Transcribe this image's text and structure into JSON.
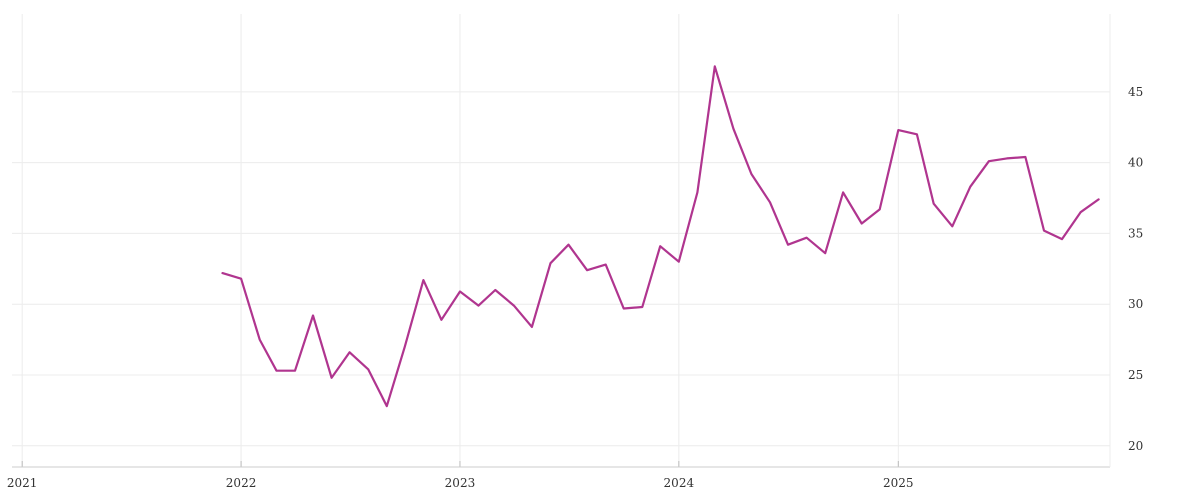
{
  "chart_data": {
    "type": "line",
    "title": "",
    "xlabel": "",
    "ylabel": "",
    "xlim": [
      "2020-12-15",
      "2025-12-20"
    ],
    "ylim": [
      18.5,
      50.5
    ],
    "x_ticks": [
      "2021",
      "2022",
      "2023",
      "2024",
      "2025"
    ],
    "y_ticks": [
      20,
      25,
      30,
      35,
      40,
      45
    ],
    "y_axis_side": "right",
    "grid": true,
    "colors": {
      "series": "#b0358f",
      "grid": "#ececec",
      "axis": "#cccccc",
      "text": "#333333"
    },
    "series": [
      {
        "x": [
          "2021-12",
          "2022-01",
          "2022-02",
          "2022-03",
          "2022-04",
          "2022-05",
          "2022-06",
          "2022-07",
          "2022-08",
          "2022-09",
          "2022-10",
          "2022-11",
          "2022-12",
          "2023-01",
          "2023-02",
          "2023-03",
          "2023-04",
          "2023-05",
          "2023-06",
          "2023-07",
          "2023-08",
          "2023-09",
          "2023-10",
          "2023-11",
          "2023-12",
          "2024-01",
          "2024-02",
          "2024-03",
          "2024-04",
          "2024-05",
          "2024-06",
          "2024-07",
          "2024-08",
          "2024-09",
          "2024-10",
          "2024-11",
          "2024-12",
          "2025-01",
          "2025-02",
          "2025-03",
          "2025-04",
          "2025-05",
          "2025-06",
          "2025-07",
          "2025-08",
          "2025-09",
          "2025-10",
          "2025-11",
          "2025-12"
        ],
        "values": [
          32.2,
          31.8,
          27.5,
          25.3,
          25.3,
          29.2,
          24.8,
          26.6,
          25.4,
          22.8,
          27.0,
          31.7,
          28.9,
          30.9,
          29.9,
          31.0,
          29.9,
          28.4,
          32.9,
          34.2,
          32.4,
          32.8,
          29.7,
          29.8,
          34.1,
          33.0,
          37.9,
          46.8,
          42.4,
          39.2,
          37.2,
          34.2,
          34.7,
          33.6,
          37.9,
          35.7,
          36.7,
          42.3,
          42.0,
          37.1,
          35.5,
          38.3,
          40.1,
          40.3,
          40.4,
          35.2,
          34.6,
          36.5,
          37.4
        ]
      }
    ]
  }
}
